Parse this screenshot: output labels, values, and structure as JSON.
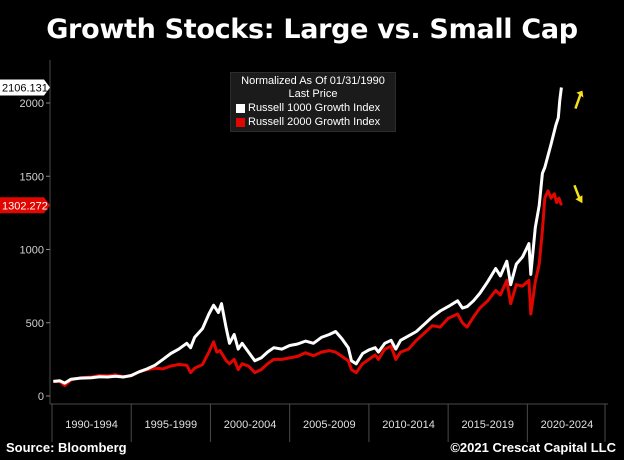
{
  "title": "Growth Stocks: Large vs. Small Cap",
  "legend": {
    "header_line1": "Normalized As Of 01/31/1990",
    "header_line2": "Last Price"
  },
  "footer": {
    "source": "Source: Bloomberg",
    "copyright": "©2021 Crescat Capital LLC"
  },
  "colors": {
    "background": "#000000",
    "large_cap": "#ffffff",
    "small_cap": "#e10600",
    "arrow": "#f4e11b",
    "grid": "#4a4a4a"
  },
  "chart_data": {
    "type": "line",
    "title": "Growth Stocks: Large vs. Small Cap",
    "xlabel": "",
    "ylabel": "",
    "x_range": [
      1990.0,
      2024.9
    ],
    "ylim": [
      -30,
      2150
    ],
    "y_ticks": [
      0,
      500,
      1000,
      1500,
      2000
    ],
    "x_tick_labels": [
      "1990-1994",
      "1995-1999",
      "2000-2004",
      "2005-2009",
      "2010-2014",
      "2015-2019",
      "2020-2024"
    ],
    "grid": false,
    "legend_position": "top-center",
    "last_price_labels": {
      "large": "2106.131",
      "small": "1302.272"
    },
    "series": [
      {
        "name": "Russell 1000 Growth Index",
        "color": "#ffffff",
        "points": [
          [
            1990.08,
            100
          ],
          [
            1990.5,
            104
          ],
          [
            1990.8,
            88
          ],
          [
            1991.2,
            115
          ],
          [
            1991.8,
            122
          ],
          [
            1992.5,
            125
          ],
          [
            1993.0,
            132
          ],
          [
            1993.5,
            130
          ],
          [
            1994.0,
            135
          ],
          [
            1994.5,
            130
          ],
          [
            1995.0,
            140
          ],
          [
            1995.5,
            165
          ],
          [
            1996.0,
            185
          ],
          [
            1996.5,
            210
          ],
          [
            1997.0,
            250
          ],
          [
            1997.5,
            290
          ],
          [
            1998.0,
            320
          ],
          [
            1998.5,
            360
          ],
          [
            1998.75,
            330
          ],
          [
            1999.0,
            400
          ],
          [
            1999.5,
            460
          ],
          [
            1999.9,
            560
          ],
          [
            2000.2,
            620
          ],
          [
            2000.5,
            570
          ],
          [
            2000.7,
            630
          ],
          [
            2001.0,
            460
          ],
          [
            2001.2,
            360
          ],
          [
            2001.5,
            420
          ],
          [
            2001.75,
            320
          ],
          [
            2002.0,
            360
          ],
          [
            2002.4,
            300
          ],
          [
            2002.8,
            240
          ],
          [
            2003.2,
            260
          ],
          [
            2003.6,
            300
          ],
          [
            2004.0,
            330
          ],
          [
            2004.5,
            320
          ],
          [
            2005.0,
            345
          ],
          [
            2005.5,
            355
          ],
          [
            2006.0,
            375
          ],
          [
            2006.5,
            360
          ],
          [
            2007.0,
            400
          ],
          [
            2007.5,
            420
          ],
          [
            2007.9,
            440
          ],
          [
            2008.3,
            390
          ],
          [
            2008.7,
            330
          ],
          [
            2008.9,
            240
          ],
          [
            2009.2,
            220
          ],
          [
            2009.6,
            290
          ],
          [
            2010.0,
            315
          ],
          [
            2010.4,
            330
          ],
          [
            2010.6,
            300
          ],
          [
            2011.0,
            360
          ],
          [
            2011.4,
            380
          ],
          [
            2011.7,
            320
          ],
          [
            2012.0,
            380
          ],
          [
            2012.5,
            410
          ],
          [
            2013.0,
            440
          ],
          [
            2013.5,
            490
          ],
          [
            2014.0,
            540
          ],
          [
            2014.5,
            580
          ],
          [
            2015.0,
            610
          ],
          [
            2015.6,
            650
          ],
          [
            2015.9,
            600
          ],
          [
            2016.2,
            610
          ],
          [
            2016.6,
            650
          ],
          [
            2017.0,
            700
          ],
          [
            2017.5,
            780
          ],
          [
            2018.0,
            870
          ],
          [
            2018.3,
            820
          ],
          [
            2018.7,
            920
          ],
          [
            2018.95,
            760
          ],
          [
            2019.3,
            900
          ],
          [
            2019.7,
            950
          ],
          [
            2020.1,
            1040
          ],
          [
            2020.22,
            830
          ],
          [
            2020.5,
            1150
          ],
          [
            2020.75,
            1300
          ],
          [
            2020.95,
            1520
          ],
          [
            2021.1,
            1560
          ],
          [
            2021.5,
            1720
          ],
          [
            2021.8,
            1850
          ],
          [
            2021.95,
            1900
          ],
          [
            2022.05,
            2020
          ],
          [
            2022.15,
            2106
          ]
        ]
      },
      {
        "name": "Russell 2000 Growth Index",
        "color": "#e10600",
        "points": [
          [
            1990.08,
            100
          ],
          [
            1990.5,
            98
          ],
          [
            1990.8,
            72
          ],
          [
            1991.2,
            110
          ],
          [
            1991.8,
            125
          ],
          [
            1992.5,
            130
          ],
          [
            1993.0,
            140
          ],
          [
            1993.5,
            138
          ],
          [
            1994.0,
            145
          ],
          [
            1994.5,
            132
          ],
          [
            1995.0,
            138
          ],
          [
            1995.5,
            165
          ],
          [
            1996.0,
            180
          ],
          [
            1996.5,
            190
          ],
          [
            1997.0,
            185
          ],
          [
            1997.5,
            205
          ],
          [
            1998.0,
            215
          ],
          [
            1998.5,
            210
          ],
          [
            1998.75,
            160
          ],
          [
            1999.0,
            190
          ],
          [
            1999.5,
            215
          ],
          [
            1999.9,
            300
          ],
          [
            2000.2,
            370
          ],
          [
            2000.4,
            300
          ],
          [
            2000.6,
            310
          ],
          [
            2001.0,
            240
          ],
          [
            2001.2,
            220
          ],
          [
            2001.5,
            250
          ],
          [
            2001.75,
            180
          ],
          [
            2002.0,
            220
          ],
          [
            2002.4,
            205
          ],
          [
            2002.8,
            160
          ],
          [
            2003.2,
            180
          ],
          [
            2003.6,
            220
          ],
          [
            2004.0,
            250
          ],
          [
            2004.5,
            250
          ],
          [
            2005.0,
            260
          ],
          [
            2005.5,
            270
          ],
          [
            2006.0,
            295
          ],
          [
            2006.5,
            275
          ],
          [
            2007.0,
            300
          ],
          [
            2007.5,
            310
          ],
          [
            2007.9,
            300
          ],
          [
            2008.3,
            270
          ],
          [
            2008.7,
            240
          ],
          [
            2008.9,
            180
          ],
          [
            2009.2,
            160
          ],
          [
            2009.6,
            220
          ],
          [
            2010.0,
            250
          ],
          [
            2010.4,
            280
          ],
          [
            2010.6,
            250
          ],
          [
            2011.0,
            320
          ],
          [
            2011.4,
            340
          ],
          [
            2011.7,
            250
          ],
          [
            2012.0,
            300
          ],
          [
            2012.5,
            320
          ],
          [
            2013.0,
            380
          ],
          [
            2013.5,
            430
          ],
          [
            2014.0,
            480
          ],
          [
            2014.5,
            470
          ],
          [
            2015.0,
            530
          ],
          [
            2015.6,
            560
          ],
          [
            2015.9,
            500
          ],
          [
            2016.2,
            470
          ],
          [
            2016.6,
            540
          ],
          [
            2017.0,
            600
          ],
          [
            2017.5,
            650
          ],
          [
            2018.0,
            720
          ],
          [
            2018.3,
            690
          ],
          [
            2018.7,
            790
          ],
          [
            2018.95,
            630
          ],
          [
            2019.3,
            760
          ],
          [
            2019.7,
            750
          ],
          [
            2020.1,
            790
          ],
          [
            2020.22,
            560
          ],
          [
            2020.5,
            780
          ],
          [
            2020.75,
            900
          ],
          [
            2020.95,
            1130
          ],
          [
            2021.1,
            1350
          ],
          [
            2021.3,
            1400
          ],
          [
            2021.5,
            1350
          ],
          [
            2021.7,
            1380
          ],
          [
            2021.85,
            1320
          ],
          [
            2022.0,
            1350
          ],
          [
            2022.15,
            1302
          ]
        ]
      }
    ]
  }
}
